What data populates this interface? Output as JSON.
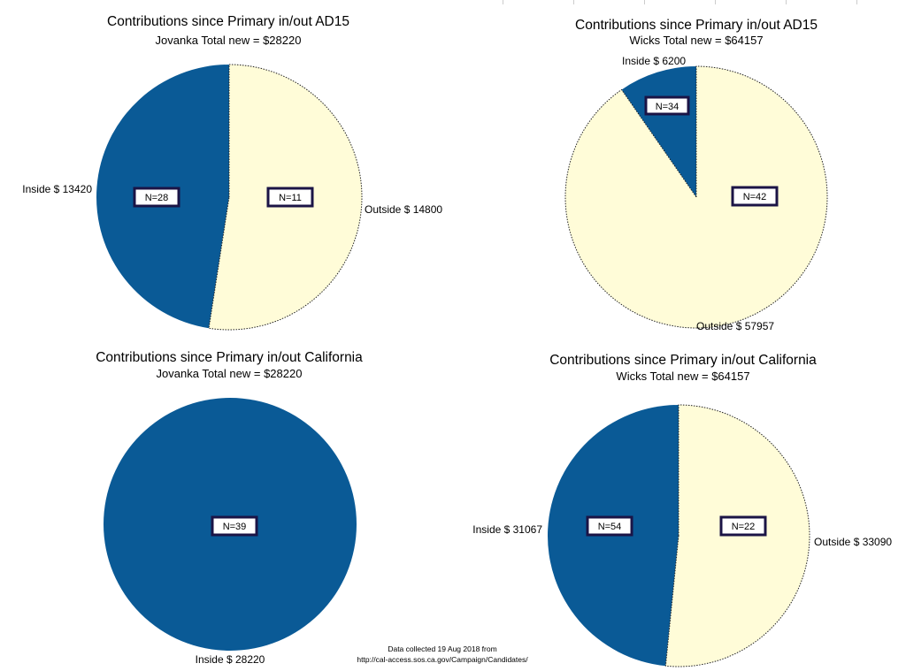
{
  "colors": {
    "inside": "#0a5a96",
    "outside": "#fffcd8",
    "box_border": "#1b1446"
  },
  "chart_data": [
    {
      "type": "pie",
      "title": "Contributions since Primary in/out AD15",
      "subtitle": "Jovanka Total new = $28220",
      "slices": [
        {
          "name": "Inside",
          "label": "Inside $ 13420",
          "value": 13420,
          "count": "N=28"
        },
        {
          "name": "Outside",
          "label": "Outside $ 14800",
          "value": 14800,
          "count": "N=11"
        }
      ]
    },
    {
      "type": "pie",
      "title": "Contributions since Primary in/out AD15",
      "subtitle": "Wicks Total new = $64157",
      "slices": [
        {
          "name": "Inside",
          "label": "Inside $ 6200",
          "value": 6200,
          "count": "N=34"
        },
        {
          "name": "Outside",
          "label": "Outside $ 57957",
          "value": 57957,
          "count": "N=42"
        }
      ]
    },
    {
      "type": "pie",
      "title": "Contributions since Primary in/out California",
      "subtitle": "Jovanka Total new = $28220",
      "slices": [
        {
          "name": "Inside",
          "label": "Inside $ 28220",
          "value": 28220,
          "count": "N=39"
        }
      ]
    },
    {
      "type": "pie",
      "title": "Contributions since Primary in/out California",
      "subtitle": "Wicks  Total new = $64157",
      "slices": [
        {
          "name": "Inside",
          "label": "Inside $ 31067",
          "value": 31067,
          "count": "N=54"
        },
        {
          "name": "Outside",
          "label": "Outside $ 33090",
          "value": 33090,
          "count": "N=22"
        }
      ]
    }
  ],
  "footer": {
    "line1": "Data collected 19 Aug 2018 from",
    "line2": "http://cal-access.sos.ca.gov/Campaign/Candidates/"
  }
}
